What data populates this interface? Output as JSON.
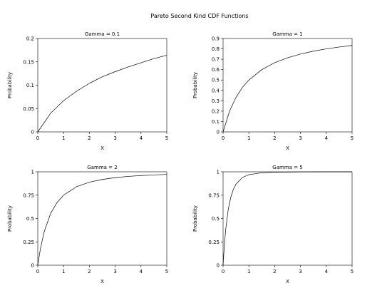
{
  "figure": {
    "title": "Pareto Second Kind CDF Functions"
  },
  "chart_data": [
    {
      "type": "line",
      "title": "Gamma = 0.1",
      "xlabel": "X",
      "ylabel": "Probability",
      "xlim": [
        0,
        5
      ],
      "ylim": [
        0,
        0.2
      ],
      "grid": false,
      "x_ticks": [
        "0",
        "1",
        "2",
        "3",
        "4",
        "5"
      ],
      "y_ticks": [
        "0",
        "0.05",
        "0.1",
        "0.15",
        "0.2"
      ],
      "series": [
        {
          "x": [
            0,
            0.5,
            1,
            1.5,
            2,
            2.5,
            3,
            3.5,
            4,
            4.5,
            5
          ],
          "values": [
            0,
            0.04,
            0.067,
            0.087,
            0.104,
            0.118,
            0.129,
            0.139,
            0.148,
            0.157,
            0.164
          ]
        }
      ]
    },
    {
      "type": "line",
      "title": "Gamma = 1",
      "xlabel": "X",
      "ylabel": "Probability",
      "xlim": [
        0,
        5
      ],
      "ylim": [
        0,
        0.9
      ],
      "grid": false,
      "x_ticks": [
        "0",
        "1",
        "2",
        "3",
        "4",
        "5"
      ],
      "y_ticks": [
        "0",
        "0.1",
        "0.2",
        "0.3",
        "0.4",
        "0.5",
        "0.6",
        "0.7",
        "0.8",
        "0.9"
      ],
      "series": [
        {
          "x": [
            0,
            0.25,
            0.5,
            0.75,
            1,
            1.5,
            2,
            2.5,
            3,
            3.5,
            4,
            4.5,
            5
          ],
          "values": [
            0,
            0.2,
            0.333,
            0.429,
            0.5,
            0.6,
            0.667,
            0.714,
            0.75,
            0.778,
            0.8,
            0.818,
            0.833
          ]
        }
      ]
    },
    {
      "type": "line",
      "title": "Gamma = 2",
      "xlabel": "X",
      "ylabel": "Probability",
      "xlim": [
        0,
        5
      ],
      "ylim": [
        0,
        1
      ],
      "grid": false,
      "x_ticks": [
        "0",
        "1",
        "2",
        "3",
        "4",
        "5"
      ],
      "y_ticks": [
        "0",
        "0.25",
        "0.5",
        "0.75",
        "1"
      ],
      "series": [
        {
          "x": [
            0,
            0.1,
            0.25,
            0.5,
            0.75,
            1,
            1.5,
            2,
            2.5,
            3,
            3.5,
            4,
            4.5,
            5
          ],
          "values": [
            0,
            0.174,
            0.36,
            0.556,
            0.673,
            0.75,
            0.84,
            0.889,
            0.918,
            0.938,
            0.951,
            0.96,
            0.967,
            0.972
          ]
        }
      ]
    },
    {
      "type": "line",
      "title": "Gamma = 5",
      "xlabel": "X",
      "ylabel": "Probability",
      "xlim": [
        0,
        5
      ],
      "ylim": [
        0,
        1
      ],
      "grid": false,
      "x_ticks": [
        "0",
        "1",
        "2",
        "3",
        "4",
        "5"
      ],
      "y_ticks": [
        "0",
        "0.25",
        "0.5",
        "0.75",
        "1"
      ],
      "series": [
        {
          "x": [
            0,
            0.05,
            0.1,
            0.2,
            0.3,
            0.4,
            0.5,
            0.75,
            1,
            1.5,
            2,
            3,
            4,
            5
          ],
          "values": [
            0,
            0.216,
            0.379,
            0.598,
            0.729,
            0.814,
            0.868,
            0.94,
            0.969,
            0.99,
            0.996,
            0.999,
            1,
            1
          ]
        }
      ]
    }
  ]
}
